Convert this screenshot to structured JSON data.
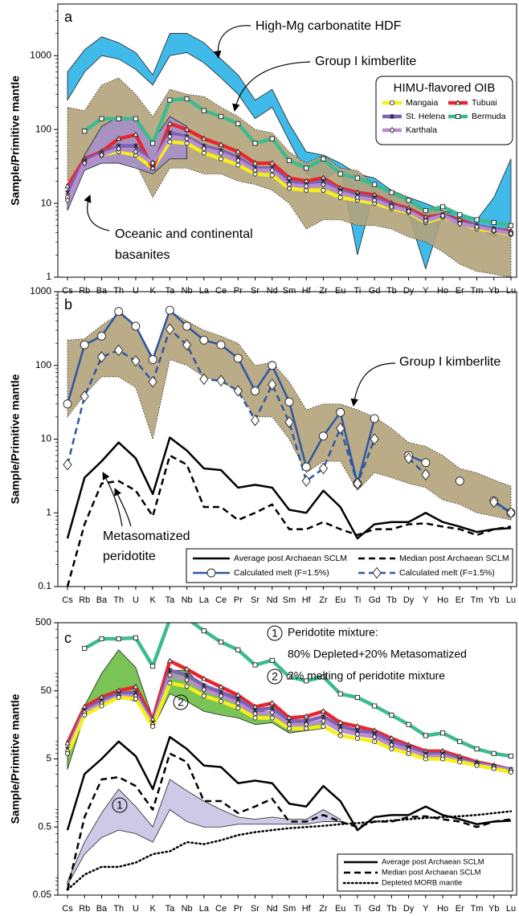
{
  "chart_data": [
    {
      "type": "line",
      "log_scale": true,
      "ylabel": "Sample/Primitive mantle",
      "annotations": [
        "a",
        "High-Mg carbonatite HDF",
        "Group I kimberlite",
        "Oceanic and continental",
        "basanites"
      ],
      "legend_title": "HIMU-flavored OIB",
      "legend": "upper right",
      "categories": [
        "Cs",
        "Rb",
        "Ba",
        "Th",
        "U",
        "K",
        "Ta",
        "Nb",
        "La",
        "Ce",
        "Pr",
        "Sr",
        "Nd",
        "Sm",
        "Hf",
        "Zr",
        "Eu",
        "Ti",
        "Gd",
        "Tb",
        "Dy",
        "Y",
        "Ho",
        "Er",
        "Tm",
        "Yb",
        "Lu"
      ],
      "ylim": [
        1,
        5000
      ],
      "yticks": [
        1,
        10,
        100,
        1000
      ],
      "bands": [
        {
          "color": "#2bb3e6",
          "edge": "solid",
          "upper": [
            600,
            1200,
            1800,
            1500,
            1100,
            550,
            2000,
            2000,
            1500,
            900,
            550,
            250,
            350,
            120,
            50,
            45,
            35,
            25,
            22,
            15,
            12,
            10,
            8,
            7,
            6,
            12,
            40
          ],
          "lower": [
            250,
            600,
            1000,
            900,
            650,
            400,
            1000,
            1100,
            800,
            500,
            300,
            140,
            200,
            70,
            25,
            20,
            30,
            2,
            15,
            10,
            7,
            1.3,
            7,
            5.5,
            4.8,
            3.5,
            5
          ]
        },
        {
          "color": "#b2a37a",
          "edge": "dotted",
          "upper": [
            200,
            180,
            400,
            500,
            300,
            150,
            350,
            300,
            280,
            200,
            150,
            100,
            90,
            50,
            35,
            45,
            30,
            28,
            18,
            15,
            12,
            8,
            8,
            6,
            5,
            4.5,
            4
          ],
          "lower": [
            20,
            30,
            40,
            35,
            35,
            12,
            30,
            30,
            25,
            25,
            20,
            18,
            15,
            10,
            4.5,
            6,
            6,
            5,
            5,
            4.5,
            3.5,
            3,
            2.2,
            1.5,
            1.2,
            1.1,
            1.0
          ]
        },
        {
          "color": "#a58fc9",
          "edge": "solid",
          "upper": [
            12,
            45,
            110,
            150,
            140,
            70,
            150,
            110,
            null,
            null,
            null,
            null,
            null,
            null,
            null,
            null,
            null,
            null,
            null,
            null,
            null,
            null,
            null,
            null,
            null,
            null,
            null
          ],
          "lower": [
            8,
            28,
            35,
            35,
            30,
            25,
            40,
            40,
            null,
            null,
            null,
            null,
            null,
            null,
            null,
            null,
            null,
            null,
            null,
            null,
            null,
            null,
            null,
            null,
            null,
            null,
            null
          ]
        }
      ],
      "series": [
        {
          "name": "Mangaia",
          "color": "#f5ef1a",
          "marker": "circle",
          "dash": "solid",
          "values": [
            12,
            38,
            45,
            50,
            45,
            30,
            68,
            65,
            48,
            40,
            33,
            25,
            24,
            16,
            15,
            15,
            12,
            11,
            10,
            8.5,
            7.5,
            5.5,
            6.5,
            5.5,
            4.5,
            4.2,
            3.8
          ]
        },
        {
          "name": "Tubuai",
          "color": "#e8262d",
          "marker": "triangle",
          "dash": "solid",
          "values": [
            17,
            40,
            50,
            75,
            85,
            30,
            120,
            100,
            75,
            62,
            50,
            35,
            35,
            22,
            20,
            22,
            16,
            14,
            13,
            10,
            8.5,
            6.5,
            7,
            6,
            5,
            4.5,
            4.2
          ]
        },
        {
          "name": "St. Helena",
          "color": "#7a62b6",
          "marker": "x",
          "dash": "solid",
          "values": [
            14,
            38,
            48,
            60,
            60,
            35,
            90,
            80,
            60,
            52,
            42,
            30,
            30,
            20,
            18,
            20,
            15,
            13,
            12,
            9.5,
            8,
            6,
            7,
            5.5,
            5,
            4.5,
            4
          ]
        },
        {
          "name": "Bermuda",
          "color": "#3dbb8f",
          "marker": "square",
          "dash": "solid",
          "values": [
            null,
            95,
            140,
            140,
            140,
            65,
            250,
            260,
            180,
            150,
            120,
            65,
            75,
            38,
            30,
            40,
            25,
            22,
            18,
            14,
            11,
            8,
            9,
            7,
            6,
            5.5,
            5
          ]
        },
        {
          "name": "Karthala",
          "color": "#b98ccd",
          "marker": "diamond",
          "dash": "solid",
          "values": [
            11,
            35,
            45,
            55,
            50,
            35,
            80,
            75,
            55,
            48,
            38,
            28,
            28,
            18,
            17,
            18,
            14,
            12,
            11,
            9,
            7.8,
            5.8,
            6.8,
            5.3,
            4.8,
            4.3,
            3.9
          ]
        }
      ]
    },
    {
      "type": "line",
      "log_scale": true,
      "ylabel": "Sample/Primitive mantle",
      "annotations": [
        "b",
        "Group I kimberlite",
        "Metasomatized",
        "peridotite"
      ],
      "legend": "lower right",
      "categories": [
        "Cs",
        "Rb",
        "Ba",
        "Th",
        "U",
        "K",
        "Ta",
        "Nb",
        "La",
        "Ce",
        "Pr",
        "Sr",
        "Nd",
        "Sm",
        "Hf",
        "Zr",
        "Eu",
        "Ti",
        "Gd",
        "Tb",
        "Dy",
        "Y",
        "Ho",
        "Er",
        "Tm",
        "Yb",
        "Lu"
      ],
      "ylim": [
        0.1,
        1000
      ],
      "yticks": [
        0.1,
        1,
        10,
        100,
        1000
      ],
      "bands": [
        {
          "color": "#b2a37a",
          "edge": "dotted",
          "upper": [
            220,
            230,
            350,
            500,
            350,
            130,
            550,
            400,
            300,
            250,
            200,
            100,
            110,
            60,
            25,
            30,
            30,
            25,
            20,
            14,
            9,
            8,
            6,
            4,
            3.5,
            2.8,
            2.3
          ],
          "lower": [
            20,
            40,
            70,
            70,
            50,
            10,
            120,
            100,
            70,
            60,
            45,
            20,
            20,
            10,
            3.5,
            5,
            5,
            2,
            3.5,
            3,
            2.5,
            2.2,
            1.5,
            1.3,
            1.0,
            0.9,
            0.8
          ]
        }
      ],
      "series": [
        {
          "name": "Average post Archaean SCLM",
          "color": "#000000",
          "marker": "none",
          "dash": "solid",
          "values": [
            0.45,
            3,
            5,
            9,
            5.5,
            1.8,
            10.5,
            7,
            4,
            3.8,
            2.2,
            2.4,
            2.2,
            1.1,
            1,
            2,
            1.2,
            0.45,
            0.7,
            0.75,
            0.75,
            1,
            0.75,
            0.65,
            0.55,
            0.6,
            0.62
          ]
        },
        {
          "name": "Median post Archaean SCLM",
          "color": "#000000",
          "marker": "none",
          "dash": "dashed",
          "values": [
            0.1,
            0.7,
            2.5,
            2.7,
            2,
            0.9,
            6,
            4.5,
            1.2,
            1.2,
            0.8,
            1,
            1.3,
            0.6,
            0.6,
            0.75,
            0.6,
            0.5,
            0.6,
            0.6,
            0.7,
            0.72,
            0.65,
            0.6,
            0.5,
            0.6,
            0.65
          ]
        },
        {
          "name": "Calculated melt (F=1.5%)",
          "color": "#2e56a6",
          "marker": "circle",
          "dash": "solid",
          "values": [
            30,
            190,
            250,
            540,
            340,
            120,
            560,
            340,
            220,
            190,
            125,
            45,
            100,
            32,
            4.2,
            11,
            23,
            2.5,
            19,
            null,
            6,
            4.8,
            null,
            2.7,
            null,
            1.45,
            1.0
          ]
        },
        {
          "name": "Calculated melt (F=1.5%)",
          "color": "#2e56a6",
          "marker": "diamond",
          "dash": "dashed",
          "values": [
            4.5,
            38,
            130,
            160,
            115,
            60,
            310,
            190,
            65,
            62,
            45,
            18,
            55,
            17,
            2.7,
            4,
            14,
            2.5,
            10,
            null,
            5.5,
            3.3,
            null,
            null,
            null,
            1.4,
            1.0
          ]
        }
      ]
    },
    {
      "type": "line",
      "log_scale": true,
      "ylabel": "Sample/Primitive mantle",
      "annotations": [
        "c",
        "1",
        "Peridotite mixture:",
        "80% Depleted+20% Metasomatized",
        "2",
        "2% melting of peridotite mixture",
        "2",
        "1"
      ],
      "legend": "lower right",
      "categories": [
        "Cs",
        "Rb",
        "Ba",
        "Th",
        "U",
        "K",
        "Ta",
        "Nb",
        "La",
        "Ce",
        "Pr",
        "Sr",
        "Nd",
        "Sm",
        "Hf",
        "Zr",
        "Eu",
        "Ti",
        "Gd",
        "Tb",
        "Dy",
        "Y",
        "Ho",
        "Er",
        "Tm",
        "Yb",
        "Lu"
      ],
      "ylim": [
        0.05,
        500
      ],
      "yticks": [
        0.05,
        0.5,
        5,
        50,
        500
      ],
      "bands": [
        {
          "color": "#6cbd45",
          "edge": "solid",
          "upper": [
            7,
            30,
            90,
            200,
            110,
            20,
            100,
            100,
            55,
            45,
            35,
            25,
            25,
            15,
            16,
            18,
            null,
            null,
            null,
            null,
            null,
            null,
            null,
            null,
            null,
            null,
            null
          ],
          "lower": [
            3.5,
            22,
            30,
            40,
            35,
            14,
            45,
            35,
            25,
            22,
            20,
            16,
            17,
            12,
            13,
            14,
            null,
            null,
            null,
            null,
            null,
            null,
            null,
            null,
            null,
            null,
            null
          ]
        },
        {
          "color": "#c9c3e3",
          "edge": "solid",
          "upper": [
            0.08,
            0.3,
            0.8,
            1.8,
            1.0,
            0.5,
            2.5,
            1.7,
            1.2,
            0.9,
            0.7,
            0.65,
            0.7,
            0.65,
            0.65,
            0.9,
            0.65,
            null,
            null,
            null,
            null,
            null,
            null,
            null,
            null,
            null,
            null
          ],
          "lower": [
            0.07,
            0.2,
            0.35,
            0.45,
            0.4,
            0.3,
            0.9,
            0.6,
            0.5,
            0.5,
            0.55,
            0.55,
            0.55,
            0.55,
            0.55,
            0.6,
            0.6,
            null,
            null,
            null,
            null,
            null,
            null,
            null,
            null,
            null,
            null
          ]
        }
      ],
      "series": [
        {
          "color": "#3dbb8f",
          "marker": "square",
          "dash": "solid",
          "values": [
            null,
            210,
            290,
            290,
            300,
            115,
            560,
            580,
            380,
            260,
            200,
            120,
            140,
            80,
            70,
            80,
            45,
            40,
            30,
            22,
            16,
            11,
            12,
            9,
            7,
            6,
            5.5
          ]
        },
        {
          "color": "#e8262d",
          "marker": "triangle",
          "dash": "solid",
          "values": [
            8.5,
            29,
            40,
            50,
            57,
            19,
            137,
            104,
            75,
            57,
            43,
            29,
            33,
            20,
            21,
            25,
            17,
            15,
            13,
            10,
            8,
            6.5,
            6.5,
            5.4,
            4.5,
            4,
            3.5
          ]
        },
        {
          "color": "#7a62b6",
          "marker": "x",
          "dash": "solid",
          "values": [
            7,
            26,
            36,
            46,
            47,
            17,
            100,
            85,
            60,
            48,
            38,
            26,
            28,
            18,
            18,
            21,
            15,
            13,
            12,
            9,
            7.5,
            6,
            6,
            5,
            4.3,
            3.9,
            3.5
          ]
        },
        {
          "color": "#b98ccd",
          "marker": "diamond",
          "dash": "solid",
          "values": [
            6.5,
            24,
            33,
            42,
            42,
            16,
            85,
            72,
            52,
            42,
            33,
            23,
            24,
            16,
            16,
            18,
            13,
            11.5,
            10.5,
            8,
            6.8,
            5.5,
            5.5,
            4.7,
            4.1,
            3.8,
            3.4
          ]
        },
        {
          "color": "#f5ef1a",
          "marker": "circle",
          "dash": "solid",
          "values": [
            6,
            22,
            30,
            40,
            38,
            15,
            65,
            58,
            42,
            35,
            28,
            20,
            20,
            14,
            14,
            15,
            11,
            10,
            9,
            7,
            6,
            5,
            5,
            4.5,
            4,
            3.6,
            3.2
          ]
        },
        {
          "name": "Average post Archaean SCLM",
          "color": "#000000",
          "marker": "none",
          "dash": "solid",
          "values": [
            0.45,
            3,
            5,
            9,
            5.5,
            1.8,
            10.5,
            7,
            4,
            3.8,
            2.2,
            2.4,
            2.2,
            1.1,
            1,
            2,
            1.2,
            0.45,
            0.7,
            0.75,
            0.75,
            1,
            0.75,
            0.65,
            0.55,
            0.6,
            0.62
          ]
        },
        {
          "name": "Median post Archaean SCLM",
          "color": "#000000",
          "marker": "none",
          "dash": "dashed",
          "values": [
            0.06,
            0.7,
            2.5,
            2.7,
            2,
            0.9,
            6,
            4.5,
            1.2,
            1.2,
            0.8,
            1,
            1.3,
            0.6,
            0.6,
            0.75,
            0.6,
            0.5,
            0.6,
            0.6,
            0.7,
            0.72,
            0.65,
            0.6,
            0.5,
            0.6,
            0.65
          ]
        },
        {
          "name": "Depleted MORB mantle",
          "color": "#000000",
          "marker": "none",
          "dash": "dotted",
          "values": [
            0.06,
            0.1,
            0.13,
            0.13,
            0.15,
            0.2,
            0.22,
            0.3,
            0.28,
            0.32,
            0.38,
            0.42,
            0.45,
            0.48,
            0.5,
            0.52,
            0.55,
            0.57,
            0.6,
            0.62,
            0.65,
            0.68,
            0.7,
            0.72,
            0.75,
            0.8,
            0.85
          ]
        }
      ]
    }
  ]
}
